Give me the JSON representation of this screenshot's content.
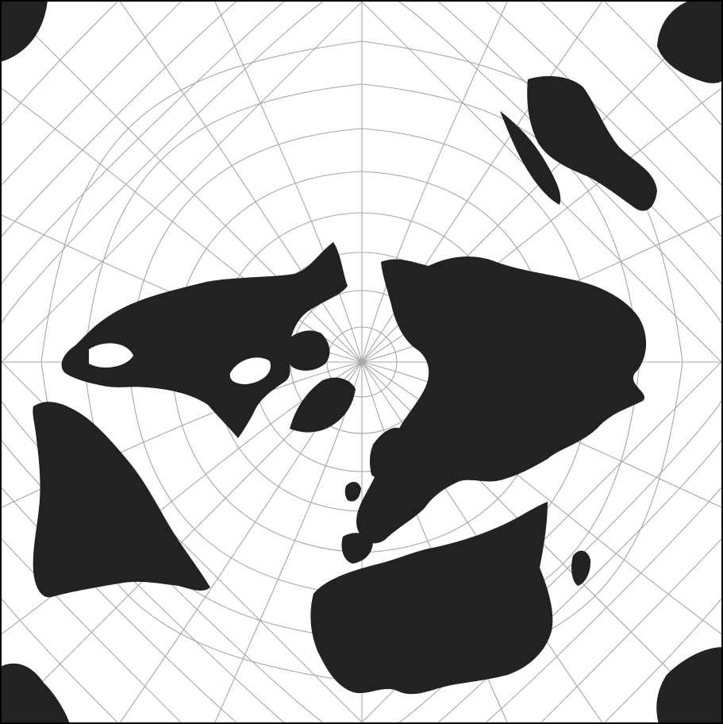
{
  "map": {
    "projection": "peirce-quincuncial",
    "graticule": true,
    "colors": {
      "land": "#222222",
      "ocean": "#ffffff",
      "graticule": "#a6a6a6",
      "border": "#000000"
    }
  }
}
